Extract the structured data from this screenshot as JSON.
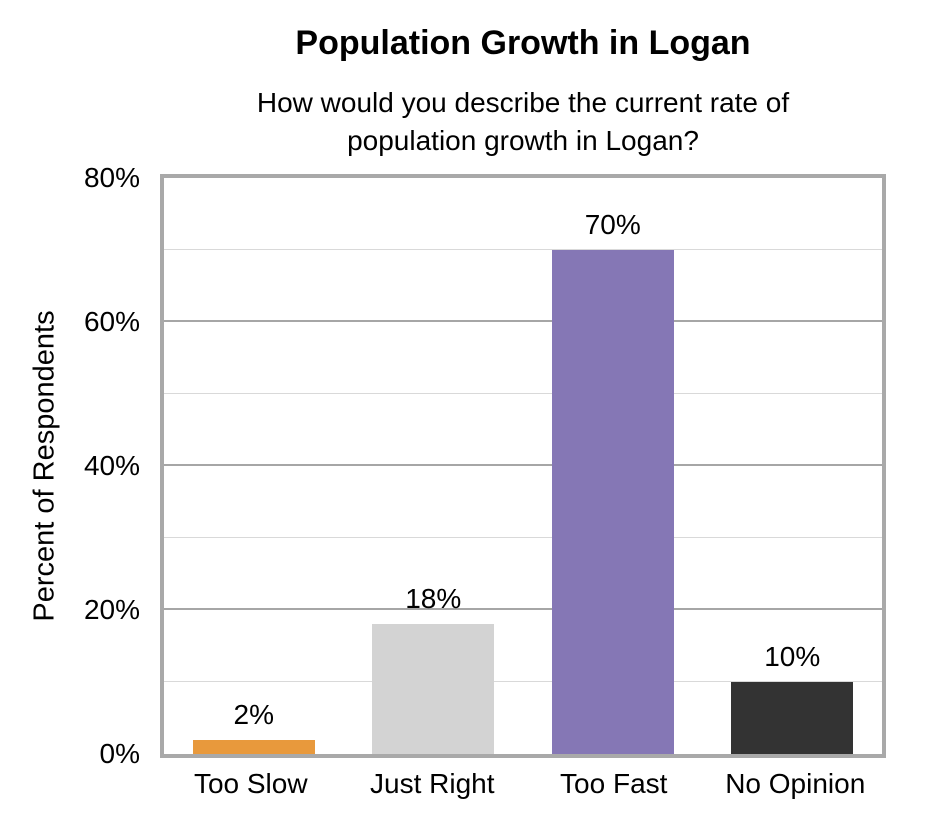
{
  "chart_data": {
    "type": "bar",
    "title": "Population Growth in Logan",
    "subtitle_line1": "How would you describe the current rate of",
    "subtitle_line2": "population growth in Logan?",
    "ylabel": "Percent of Respondents",
    "xlabel": "",
    "categories": [
      "Too Slow",
      "Just Right",
      "Too Fast",
      "No Opinion"
    ],
    "values": [
      2,
      18,
      70,
      10
    ],
    "data_labels": [
      "2%",
      "18%",
      "70%",
      "10%"
    ],
    "bar_colors": [
      "#E8993C",
      "#D3D3D3",
      "#8577B5",
      "#333333"
    ],
    "ylim": [
      0,
      80
    ],
    "ytick_values": [
      0,
      20,
      40,
      60,
      80
    ],
    "ytick_labels": [
      "0%",
      "20%",
      "40%",
      "60%",
      "80%"
    ],
    "minor_grid_step": 10,
    "grid": "horizontal",
    "legend": "none",
    "colors": {
      "plot_border": "#A9A9A9",
      "major_grid": "#A6A6A6",
      "minor_grid": "#D9D9D9",
      "text": "#000000",
      "background": "#FFFFFF"
    }
  }
}
